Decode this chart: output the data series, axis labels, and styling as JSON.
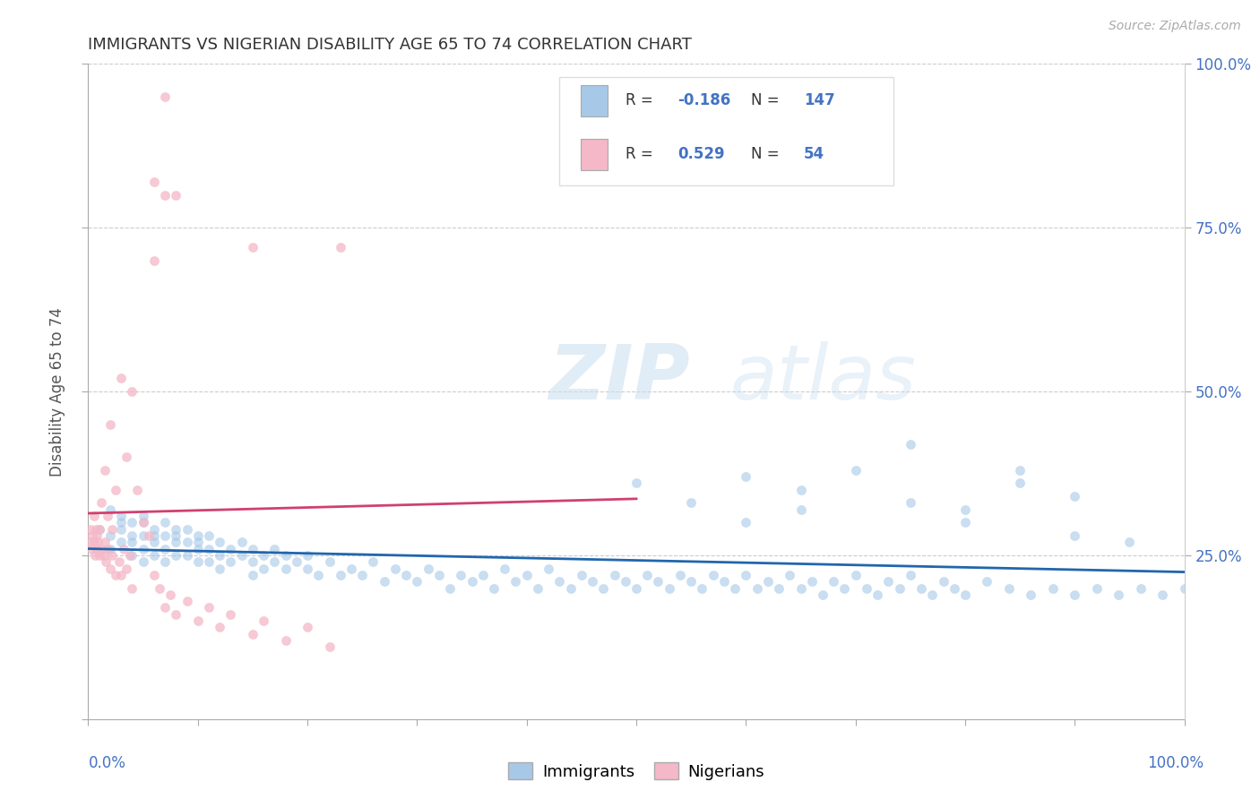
{
  "title": "IMMIGRANTS VS NIGERIAN DISABILITY AGE 65 TO 74 CORRELATION CHART",
  "source": "Source: ZipAtlas.com",
  "ylabel": "Disability Age 65 to 74",
  "legend_immigrants": "Immigrants",
  "legend_nigerians": "Nigerians",
  "r_immigrants": "-0.186",
  "n_immigrants": "147",
  "r_nigerians": "0.529",
  "n_nigerians": "54",
  "watermark": "ZIPatlas",
  "blue_color": "#a8c8e8",
  "pink_color": "#f4b8c8",
  "blue_line_color": "#2166ac",
  "pink_line_color": "#d04070",
  "text_blue": "#4472c4",
  "xlim": [
    0.0,
    1.0
  ],
  "ylim": [
    0.0,
    1.0
  ],
  "immigrants_x": [
    0.01,
    0.02,
    0.02,
    0.02,
    0.03,
    0.03,
    0.03,
    0.03,
    0.04,
    0.04,
    0.04,
    0.04,
    0.05,
    0.05,
    0.05,
    0.05,
    0.05,
    0.06,
    0.06,
    0.06,
    0.06,
    0.07,
    0.07,
    0.07,
    0.07,
    0.08,
    0.08,
    0.08,
    0.08,
    0.09,
    0.09,
    0.09,
    0.1,
    0.1,
    0.1,
    0.1,
    0.11,
    0.11,
    0.11,
    0.12,
    0.12,
    0.12,
    0.13,
    0.13,
    0.14,
    0.14,
    0.15,
    0.15,
    0.15,
    0.16,
    0.16,
    0.17,
    0.17,
    0.18,
    0.18,
    0.19,
    0.2,
    0.2,
    0.21,
    0.22,
    0.23,
    0.24,
    0.25,
    0.26,
    0.27,
    0.28,
    0.29,
    0.3,
    0.31,
    0.32,
    0.33,
    0.34,
    0.35,
    0.36,
    0.37,
    0.38,
    0.39,
    0.4,
    0.41,
    0.42,
    0.43,
    0.44,
    0.45,
    0.46,
    0.47,
    0.48,
    0.49,
    0.5,
    0.51,
    0.52,
    0.53,
    0.54,
    0.55,
    0.56,
    0.57,
    0.58,
    0.59,
    0.6,
    0.61,
    0.62,
    0.63,
    0.64,
    0.65,
    0.66,
    0.67,
    0.68,
    0.69,
    0.7,
    0.71,
    0.72,
    0.73,
    0.74,
    0.75,
    0.76,
    0.77,
    0.78,
    0.79,
    0.8,
    0.82,
    0.84,
    0.86,
    0.88,
    0.9,
    0.92,
    0.94,
    0.96,
    0.98,
    1.0,
    0.6,
    0.65,
    0.7,
    0.75,
    0.8,
    0.85,
    0.9,
    0.75,
    0.8,
    0.85,
    0.9,
    0.95,
    0.5,
    0.55,
    0.6,
    0.65
  ],
  "immigrants_y": [
    0.29,
    0.32,
    0.28,
    0.26,
    0.3,
    0.27,
    0.31,
    0.29,
    0.28,
    0.3,
    0.27,
    0.25,
    0.31,
    0.28,
    0.26,
    0.3,
    0.24,
    0.29,
    0.27,
    0.25,
    0.28,
    0.28,
    0.26,
    0.3,
    0.24,
    0.27,
    0.29,
    0.25,
    0.28,
    0.27,
    0.25,
    0.29,
    0.26,
    0.28,
    0.24,
    0.27,
    0.26,
    0.28,
    0.24,
    0.27,
    0.25,
    0.23,
    0.26,
    0.24,
    0.25,
    0.27,
    0.24,
    0.26,
    0.22,
    0.25,
    0.23,
    0.24,
    0.26,
    0.23,
    0.25,
    0.24,
    0.23,
    0.25,
    0.22,
    0.24,
    0.22,
    0.23,
    0.22,
    0.24,
    0.21,
    0.23,
    0.22,
    0.21,
    0.23,
    0.22,
    0.2,
    0.22,
    0.21,
    0.22,
    0.2,
    0.23,
    0.21,
    0.22,
    0.2,
    0.23,
    0.21,
    0.2,
    0.22,
    0.21,
    0.2,
    0.22,
    0.21,
    0.2,
    0.22,
    0.21,
    0.2,
    0.22,
    0.21,
    0.2,
    0.22,
    0.21,
    0.2,
    0.22,
    0.2,
    0.21,
    0.2,
    0.22,
    0.2,
    0.21,
    0.19,
    0.21,
    0.2,
    0.22,
    0.2,
    0.19,
    0.21,
    0.2,
    0.22,
    0.2,
    0.19,
    0.21,
    0.2,
    0.19,
    0.21,
    0.2,
    0.19,
    0.2,
    0.19,
    0.2,
    0.19,
    0.2,
    0.19,
    0.2,
    0.37,
    0.35,
    0.38,
    0.33,
    0.3,
    0.36,
    0.28,
    0.42,
    0.32,
    0.38,
    0.34,
    0.27,
    0.36,
    0.33,
    0.3,
    0.32
  ],
  "nigerians_x": [
    0.001,
    0.002,
    0.003,
    0.004,
    0.005,
    0.005,
    0.006,
    0.007,
    0.008,
    0.008,
    0.009,
    0.01,
    0.01,
    0.012,
    0.012,
    0.014,
    0.015,
    0.015,
    0.016,
    0.018,
    0.018,
    0.02,
    0.02,
    0.022,
    0.022,
    0.025,
    0.025,
    0.028,
    0.03,
    0.03,
    0.032,
    0.035,
    0.035,
    0.038,
    0.04,
    0.04,
    0.045,
    0.05,
    0.055,
    0.06,
    0.065,
    0.07,
    0.075,
    0.08,
    0.09,
    0.1,
    0.11,
    0.12,
    0.13,
    0.15,
    0.16,
    0.18,
    0.2,
    0.22
  ],
  "nigerians_y": [
    0.27,
    0.29,
    0.26,
    0.28,
    0.27,
    0.31,
    0.25,
    0.29,
    0.26,
    0.28,
    0.27,
    0.25,
    0.29,
    0.26,
    0.33,
    0.25,
    0.27,
    0.38,
    0.24,
    0.26,
    0.31,
    0.23,
    0.45,
    0.25,
    0.29,
    0.22,
    0.35,
    0.24,
    0.22,
    0.52,
    0.26,
    0.23,
    0.4,
    0.25,
    0.2,
    0.5,
    0.35,
    0.3,
    0.28,
    0.22,
    0.2,
    0.17,
    0.19,
    0.16,
    0.18,
    0.15,
    0.17,
    0.14,
    0.16,
    0.13,
    0.15,
    0.12,
    0.14,
    0.11
  ],
  "nig_outliers_x": [
    0.06,
    0.07,
    0.07,
    0.06,
    0.08,
    0.15,
    0.23
  ],
  "nig_outliers_y": [
    0.82,
    0.95,
    0.8,
    0.7,
    0.8,
    0.72,
    0.72
  ]
}
